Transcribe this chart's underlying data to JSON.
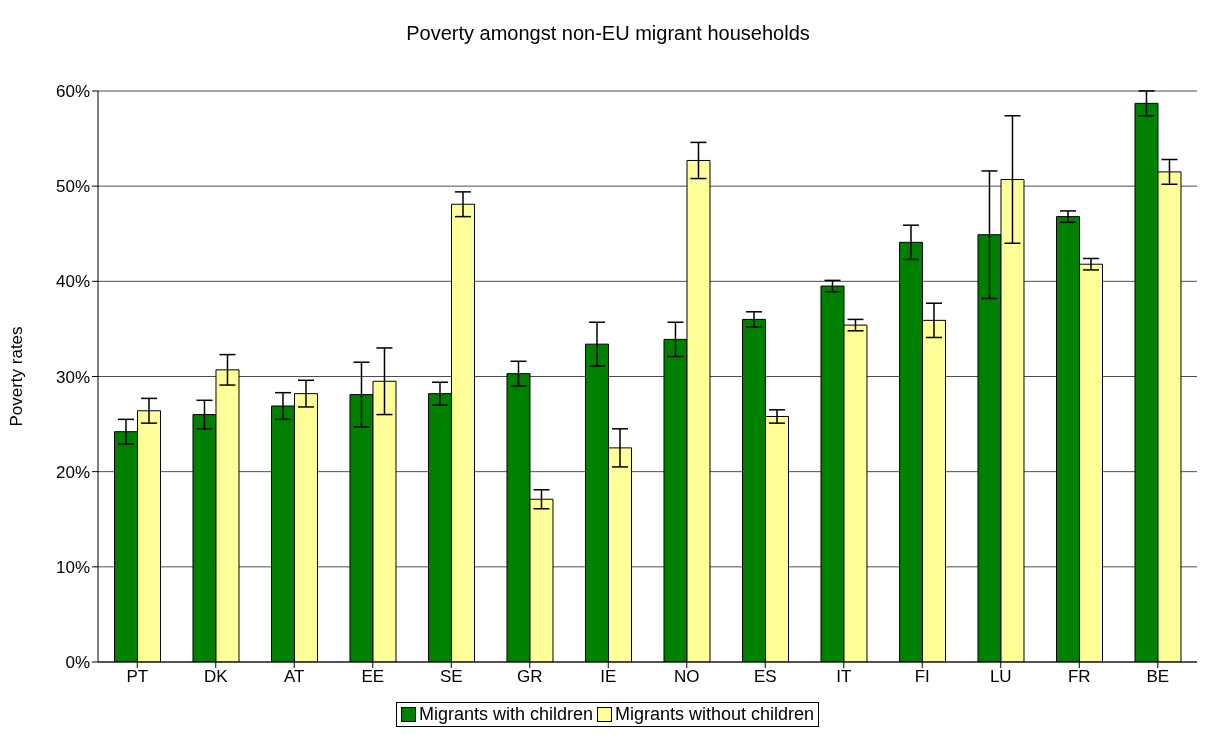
{
  "chart_data": {
    "type": "bar",
    "title": "Poverty amongst non-EU migrant households",
    "ylabel": "Poverty rates",
    "categories": [
      "PT",
      "DK",
      "AT",
      "EE",
      "SE",
      "GR",
      "IE",
      "NO",
      "ES",
      "IT",
      "FI",
      "LU",
      "FR",
      "BE"
    ],
    "series": [
      {
        "name": "Migrants with children",
        "color": "#008000",
        "values": [
          24.2,
          26.0,
          26.9,
          28.1,
          28.2,
          30.3,
          33.4,
          33.9,
          36.0,
          39.5,
          44.1,
          44.9,
          46.8,
          58.7
        ],
        "errors": [
          1.3,
          1.5,
          1.4,
          3.4,
          1.2,
          1.3,
          2.3,
          1.8,
          0.8,
          0.6,
          1.8,
          6.7,
          0.6,
          1.3
        ]
      },
      {
        "name": "Migrants without children",
        "color": "#ffff99",
        "values": [
          26.4,
          30.7,
          28.2,
          29.5,
          48.1,
          17.1,
          22.5,
          52.7,
          25.8,
          35.4,
          35.9,
          50.7,
          41.8,
          51.5
        ],
        "errors": [
          1.3,
          1.6,
          1.4,
          3.5,
          1.3,
          1.0,
          2.0,
          1.9,
          0.7,
          0.6,
          1.8,
          6.7,
          0.6,
          1.3
        ]
      }
    ],
    "ylim": [
      0,
      60
    ],
    "yticks": [
      {
        "value": 0,
        "label": "0%"
      },
      {
        "value": 10,
        "label": "10%"
      },
      {
        "value": 20,
        "label": "20%"
      },
      {
        "value": 30,
        "label": "30%"
      },
      {
        "value": 40,
        "label": "40%"
      },
      {
        "value": 50,
        "label": "50%"
      },
      {
        "value": 60,
        "label": "60%"
      }
    ],
    "grid": "y",
    "legend": "bottom"
  }
}
